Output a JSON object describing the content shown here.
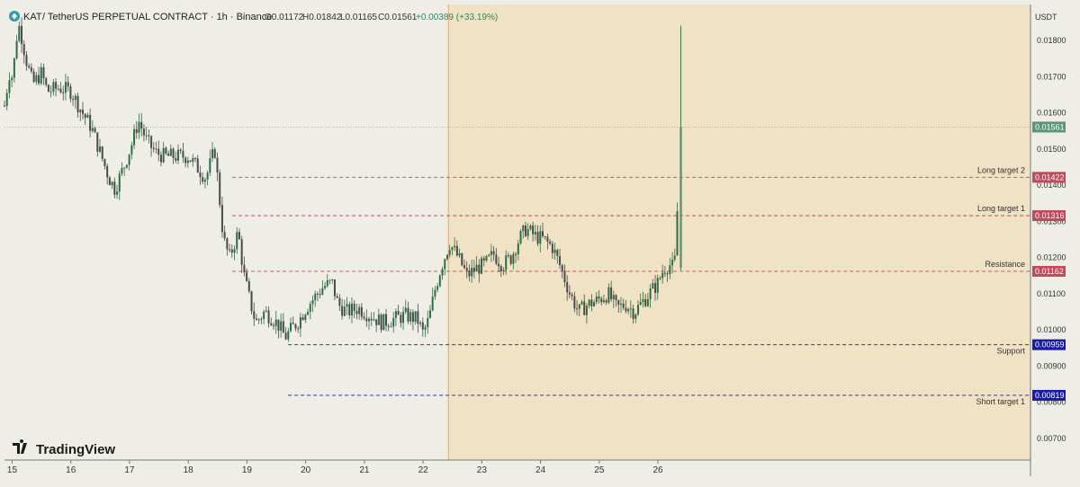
{
  "header": {
    "symbol": "KAT",
    "pair": "/ TetherUS PERPETUAL CONTRACT · 1h · Binance",
    "open": "O0.01172",
    "high": "H0.01842",
    "low": "L0.01165",
    "close": "C0.01561",
    "change": "+0.00389 (+33.19%)"
  },
  "axis": {
    "currency": "USDT",
    "y_ticks": [
      "0.01800",
      "0.01700",
      "0.01600",
      "0.01500",
      "0.01400",
      "0.01300",
      "0.01200",
      "0.01100",
      "0.01000",
      "0.00900",
      "0.00800",
      "0.00700"
    ],
    "x_ticks": [
      "15",
      "16",
      "17",
      "18",
      "19",
      "20",
      "21",
      "22",
      "23",
      "24",
      "25",
      "26"
    ]
  },
  "branding": {
    "name": "TradingView"
  },
  "colors": {
    "background": "#eeeee6",
    "highlight_zone": "#f0e2c4",
    "candle_up": "#2f6b45",
    "candle_down": "#4a4a4a",
    "resistance": "#c0495a",
    "support": "#1a1aa8",
    "last_price": "#5b9478"
  },
  "chart_data": {
    "type": "candlestick",
    "ylim": [
      0.0064,
      0.019
    ],
    "xlim": [
      14.87,
      26.75
    ],
    "last_price": {
      "value": 0.01561,
      "label": "0.01561"
    },
    "levels": [
      {
        "name": "Long target 2",
        "value": 0.01422,
        "label": "0.01422",
        "start": 18.75,
        "kind": "resistance"
      },
      {
        "name": "Long target 1",
        "value": 0.01316,
        "label": "0.01316",
        "start": 18.75,
        "kind": "resistance"
      },
      {
        "name": "Resistance",
        "value": 0.01162,
        "label": "0.01162",
        "start": 18.75,
        "kind": "resistance"
      },
      {
        "name": "Support",
        "value": 0.00959,
        "label": "0.00959",
        "start": 19.7,
        "kind": "support"
      },
      {
        "name": "Short target 1",
        "value": 0.00819,
        "label": "0.00819",
        "start": 19.7,
        "kind": "support"
      }
    ],
    "highlight_zone": {
      "x_start": 22.43
    },
    "anchor_closes": [
      [
        14.87,
        0.0162
      ],
      [
        14.95,
        0.0171
      ],
      [
        15.0,
        0.017
      ],
      [
        15.05,
        0.0176
      ],
      [
        15.1,
        0.0185
      ],
      [
        15.15,
        0.0182
      ],
      [
        15.25,
        0.0174
      ],
      [
        15.35,
        0.0168
      ],
      [
        15.5,
        0.0171
      ],
      [
        15.6,
        0.0166
      ],
      [
        15.8,
        0.0167
      ],
      [
        16.0,
        0.0166
      ],
      [
        16.2,
        0.016
      ],
      [
        16.35,
        0.0156
      ],
      [
        16.5,
        0.0149
      ],
      [
        16.65,
        0.0142
      ],
      [
        16.75,
        0.0139
      ],
      [
        16.9,
        0.0145
      ],
      [
        17.05,
        0.0152
      ],
      [
        17.15,
        0.0158
      ],
      [
        17.3,
        0.0152
      ],
      [
        17.45,
        0.0149
      ],
      [
        17.6,
        0.0148
      ],
      [
        17.8,
        0.0148
      ],
      [
        18.0,
        0.0148
      ],
      [
        18.15,
        0.0145
      ],
      [
        18.3,
        0.0142
      ],
      [
        18.45,
        0.015
      ],
      [
        18.6,
        0.0125
      ],
      [
        18.7,
        0.012
      ],
      [
        18.85,
        0.0127
      ],
      [
        18.95,
        0.0115
      ],
      [
        19.05,
        0.0108
      ],
      [
        19.15,
        0.0102
      ],
      [
        19.3,
        0.0105
      ],
      [
        19.45,
        0.0103
      ],
      [
        19.55,
        0.0101
      ],
      [
        19.65,
        0.0098
      ],
      [
        19.75,
        0.01
      ],
      [
        19.9,
        0.0103
      ],
      [
        20.0,
        0.0106
      ],
      [
        20.1,
        0.0108
      ],
      [
        20.3,
        0.0112
      ],
      [
        20.45,
        0.0113
      ],
      [
        20.55,
        0.0107
      ],
      [
        20.7,
        0.0105
      ],
      [
        20.9,
        0.0106
      ],
      [
        21.1,
        0.0104
      ],
      [
        21.3,
        0.0102
      ],
      [
        21.5,
        0.0103
      ],
      [
        21.7,
        0.0104
      ],
      [
        21.9,
        0.0103
      ],
      [
        22.0,
        0.0099
      ],
      [
        22.1,
        0.0103
      ],
      [
        22.2,
        0.0111
      ],
      [
        22.3,
        0.0117
      ],
      [
        22.45,
        0.0124
      ],
      [
        22.6,
        0.012
      ],
      [
        22.75,
        0.0115
      ],
      [
        22.9,
        0.0117
      ],
      [
        23.05,
        0.0118
      ],
      [
        23.2,
        0.0121
      ],
      [
        23.35,
        0.0118
      ],
      [
        23.5,
        0.012
      ],
      [
        23.6,
        0.0124
      ],
      [
        23.75,
        0.0128
      ],
      [
        23.9,
        0.0126
      ],
      [
        24.05,
        0.0125
      ],
      [
        24.2,
        0.0123
      ],
      [
        24.35,
        0.0117
      ],
      [
        24.5,
        0.011
      ],
      [
        24.65,
        0.0105
      ],
      [
        24.8,
        0.0107
      ],
      [
        24.95,
        0.0108
      ],
      [
        25.15,
        0.011
      ],
      [
        25.3,
        0.0106
      ],
      [
        25.45,
        0.0107
      ],
      [
        25.6,
        0.0105
      ],
      [
        25.75,
        0.0108
      ],
      [
        25.9,
        0.0111
      ],
      [
        26.0,
        0.0113
      ],
      [
        26.1,
        0.0117
      ],
      [
        26.2,
        0.0118
      ],
      [
        26.28,
        0.0117
      ],
      [
        26.4,
        0.01561
      ]
    ]
  }
}
